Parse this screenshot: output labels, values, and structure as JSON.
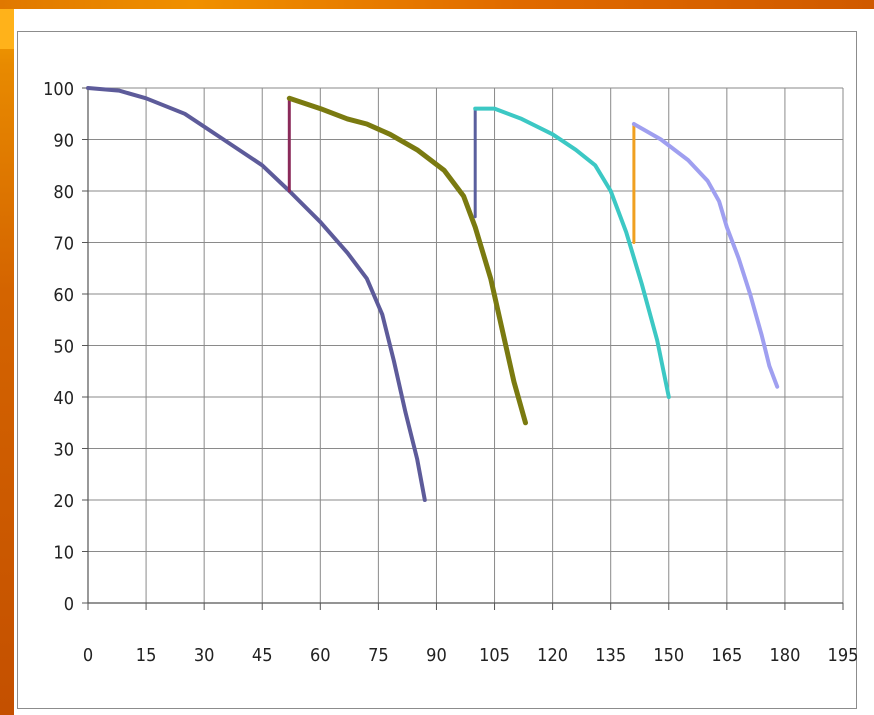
{
  "chart_data": {
    "type": "line",
    "xlim": [
      0,
      195
    ],
    "ylim": [
      0,
      100
    ],
    "x_ticks": [
      "0",
      "15",
      "30",
      "45",
      "60",
      "75",
      "90",
      "105",
      "120",
      "135",
      "150",
      "165",
      "180",
      "195"
    ],
    "y_ticks": [
      "0",
      "10",
      "20",
      "30",
      "40",
      "50",
      "60",
      "70",
      "80",
      "90",
      "100"
    ],
    "grid": true,
    "legend": "none",
    "series": [
      {
        "color": "#5d5b9a",
        "width": 4,
        "points": [
          [
            0,
            100
          ],
          [
            8,
            99.5
          ],
          [
            15,
            98
          ],
          [
            25,
            95
          ],
          [
            35,
            90
          ],
          [
            45,
            85
          ],
          [
            52,
            80
          ],
          [
            60,
            74
          ],
          [
            67,
            68
          ],
          [
            72,
            63
          ],
          [
            76,
            56
          ],
          [
            79,
            47
          ],
          [
            82,
            37
          ],
          [
            85,
            28
          ],
          [
            87,
            20
          ]
        ]
      },
      {
        "color": "#8a2a5a",
        "width": 3,
        "points": [
          [
            52,
            80
          ],
          [
            52,
            98
          ]
        ]
      },
      {
        "color": "#7a7a10",
        "width": 5,
        "points": [
          [
            52,
            98
          ],
          [
            60,
            96
          ],
          [
            67,
            94
          ],
          [
            72,
            93
          ],
          [
            78,
            91
          ],
          [
            85,
            88
          ],
          [
            92,
            84
          ],
          [
            97,
            79
          ],
          [
            100,
            73
          ],
          [
            104,
            63
          ],
          [
            107,
            53
          ],
          [
            110,
            43
          ],
          [
            113,
            35
          ]
        ]
      },
      {
        "color": "#5a5f9e",
        "width": 3,
        "points": [
          [
            100,
            75
          ],
          [
            100,
            96
          ]
        ]
      },
      {
        "color": "#3cc8c4",
        "width": 4,
        "points": [
          [
            100,
            96
          ],
          [
            105,
            96
          ],
          [
            112,
            94
          ],
          [
            120,
            91
          ],
          [
            126,
            88
          ],
          [
            131,
            85
          ],
          [
            135,
            80
          ],
          [
            139,
            72
          ],
          [
            143,
            62
          ],
          [
            147,
            51
          ],
          [
            150,
            40
          ]
        ]
      },
      {
        "color": "#f0a020",
        "width": 3,
        "points": [
          [
            141,
            70
          ],
          [
            141,
            93
          ]
        ]
      },
      {
        "color": "#9f9ff0",
        "width": 4,
        "points": [
          [
            141,
            93
          ],
          [
            148,
            90
          ],
          [
            155,
            86
          ],
          [
            160,
            82
          ],
          [
            163,
            78
          ],
          [
            165,
            73
          ],
          [
            168,
            67
          ],
          [
            171,
            60
          ],
          [
            174,
            52
          ],
          [
            176,
            46
          ],
          [
            178,
            42
          ]
        ]
      }
    ]
  }
}
